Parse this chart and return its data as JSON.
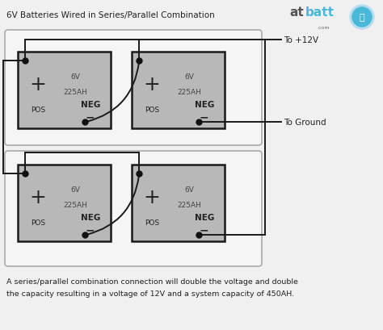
{
  "title": "6V Batteries Wired in Series/Parallel Combination",
  "footer_line1": "A series/parallel combination connection will double the voltage and double",
  "footer_line2": "the capacity resulting in a voltage of 12V and a system capacity of 450AH.",
  "to_pos12v": "To +12V",
  "to_ground": "To Ground",
  "bg_color": "#f0f0f0",
  "box_bg": "#b8b8b8",
  "box_border": "#1a1a1a",
  "group_box_border": "#aaaaaa",
  "group_box_fill": "#e8e8e8",
  "outer_box_fill": "#f5f5f5",
  "wire_color": "#1a1a1a",
  "text_dark": "#222222",
  "text_med": "#444444"
}
